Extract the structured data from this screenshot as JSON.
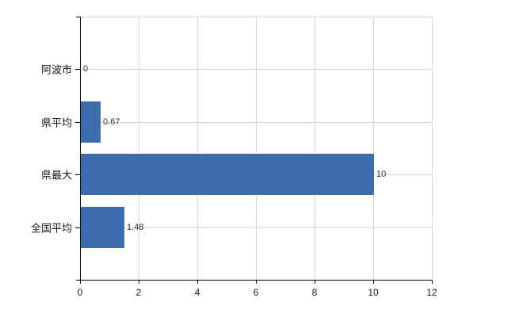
{
  "chart_data": {
    "type": "bar",
    "orientation": "horizontal",
    "title": "",
    "xlabel": "",
    "ylabel": "",
    "categories": [
      "阿波市",
      "県平均",
      "県最大",
      "全国平均"
    ],
    "values": [
      0,
      0.67,
      10,
      1.48
    ],
    "value_labels": [
      "0",
      "0.67",
      "10",
      "1.48"
    ],
    "x_ticks": [
      0,
      2,
      4,
      6,
      8,
      10,
      12
    ],
    "x_tick_labels": [
      "0",
      "2",
      "4",
      "6",
      "8",
      "10",
      "12"
    ],
    "xlim": [
      0,
      12
    ],
    "grid": true,
    "legend": "none",
    "colors": {
      "bar": "#3d6cae",
      "gridline": "#d6d6d6",
      "axis": "#000000",
      "value_label": "#303030",
      "category_label": "#1a1a1a",
      "tick_label": "#1a1a1a",
      "background": "#ffffff"
    }
  }
}
